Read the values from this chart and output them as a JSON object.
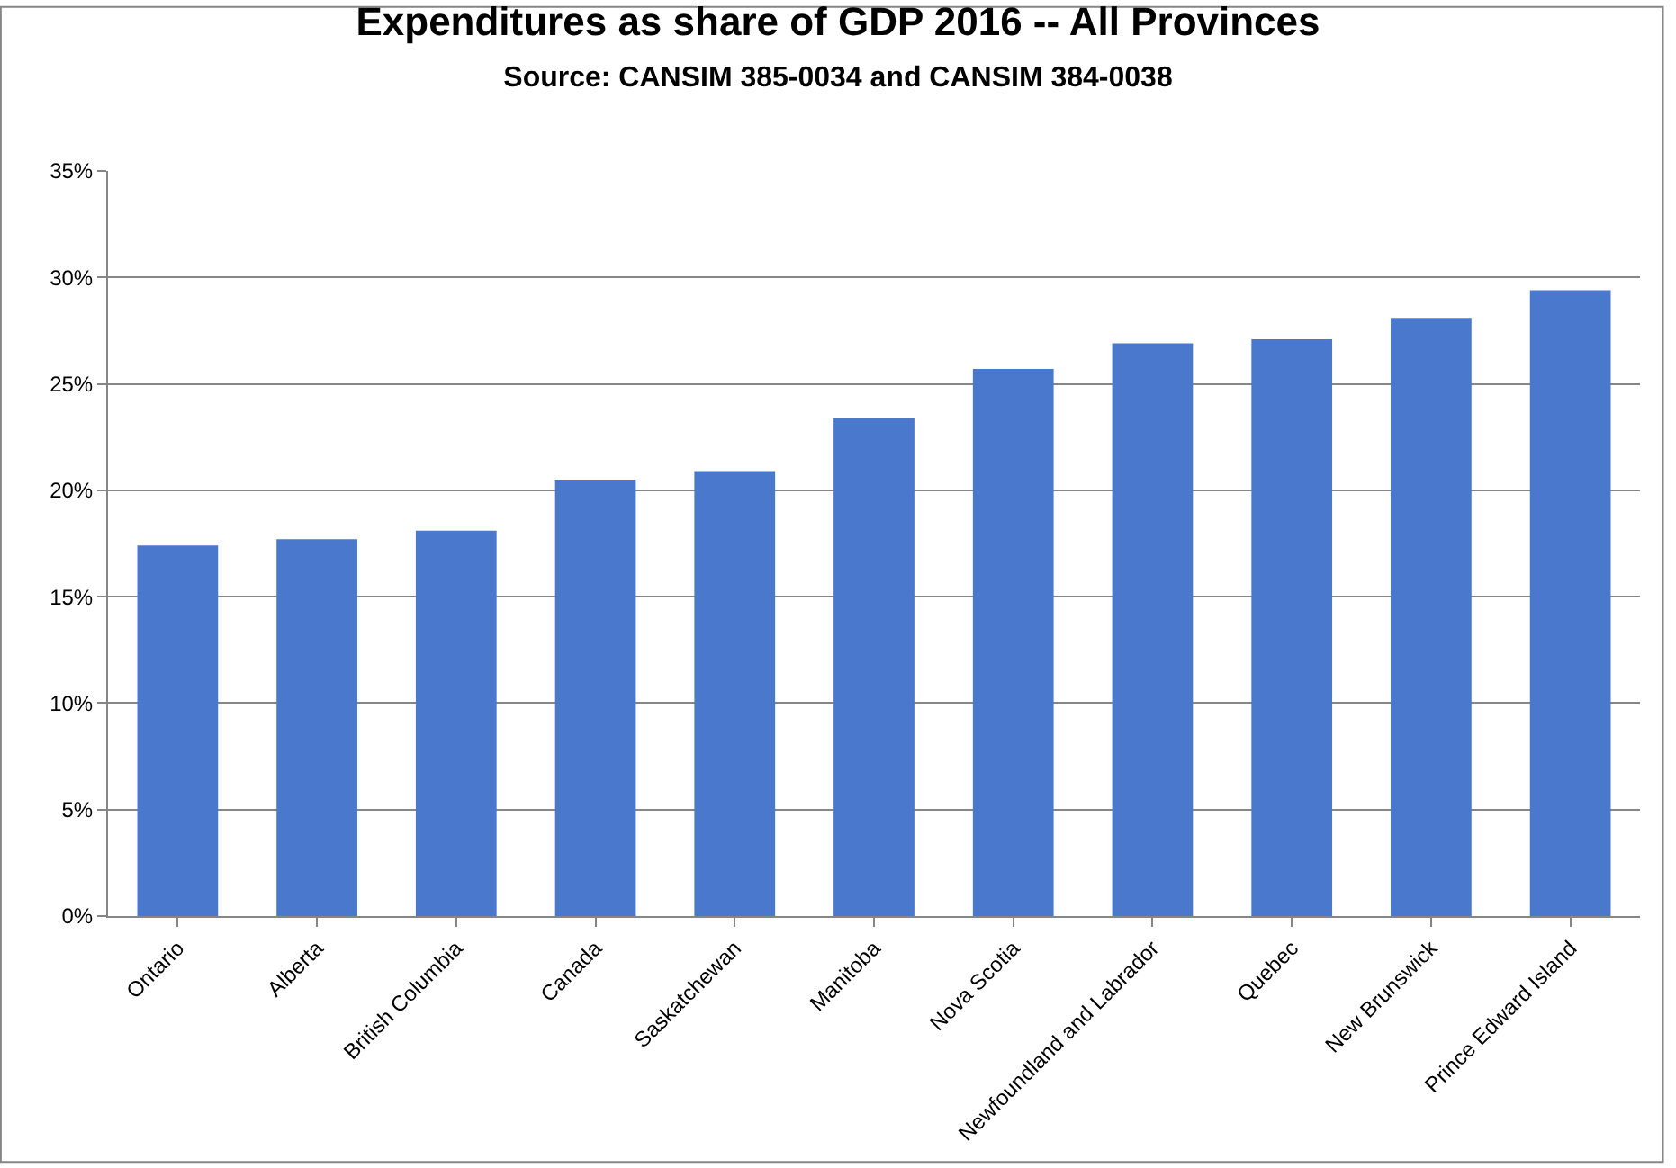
{
  "chart_data": {
    "type": "bar",
    "title": "Expenditures as share of GDP 2016 -- All Provinces",
    "subtitle": "Source: CANSIM 385-0034 and CANSIM 384-0038",
    "categories": [
      "Ontario",
      "Alberta",
      "British Columbia",
      "Canada",
      "Saskatchewan",
      "Manitoba",
      "Nova Scotia",
      "Newfoundland and Labrador",
      "Quebec",
      "New Brunswick",
      "Prince Edward Island"
    ],
    "values": [
      17.4,
      17.7,
      18.1,
      20.5,
      20.9,
      23.4,
      25.7,
      26.9,
      27.1,
      28.1,
      29.4
    ],
    "color": "#4a78cc",
    "ylim": [
      0,
      35
    ],
    "yticks": [
      {
        "value": 0,
        "label": "0%"
      },
      {
        "value": 5,
        "label": "5%"
      },
      {
        "value": 10,
        "label": "10%"
      },
      {
        "value": 15,
        "label": "15%"
      },
      {
        "value": 20,
        "label": "20%"
      },
      {
        "value": 25,
        "label": "25%"
      },
      {
        "value": 30,
        "label": "30%"
      },
      {
        "value": 35,
        "label": "35%"
      }
    ],
    "grid": "y"
  }
}
